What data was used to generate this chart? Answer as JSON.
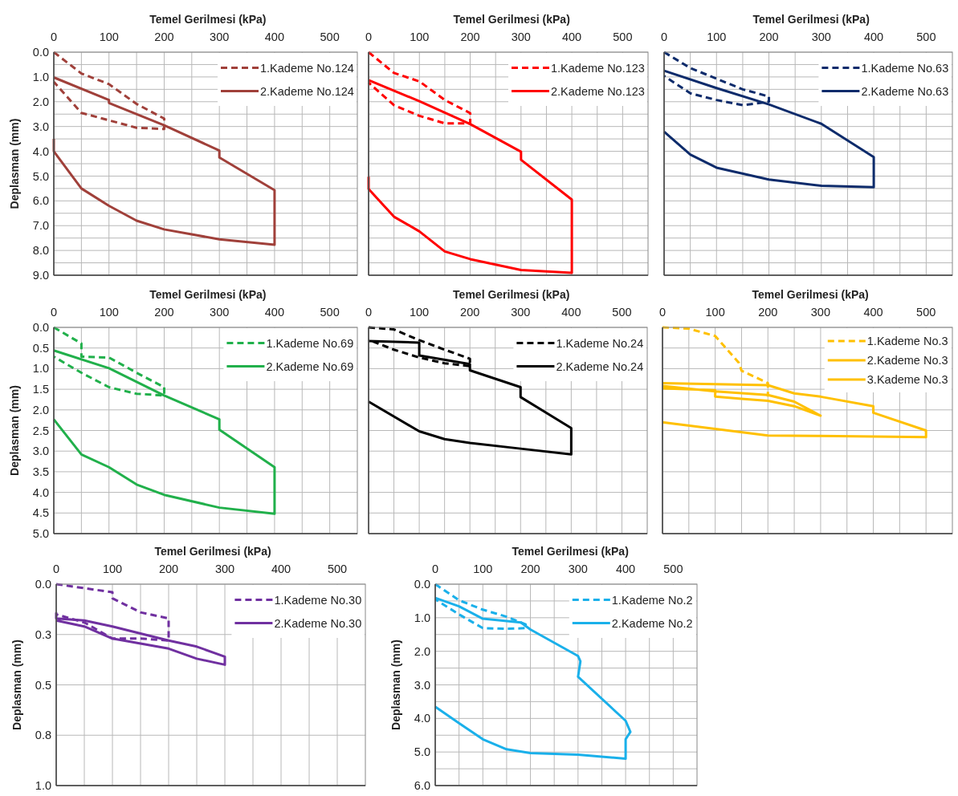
{
  "chart_data": [
    {
      "type": "line",
      "xlabel": "Temel Gerilmesi (kPa)",
      "ylabel": "Deplasman (mm)",
      "xlim": [
        0,
        550
      ],
      "ylim": [
        9,
        0
      ],
      "grid": true,
      "legend": "top right",
      "xticks": [
        0,
        {
          "value": 50,
          "label": null
        },
        100,
        {
          "value": 150,
          "label": null
        },
        200,
        {
          "value": 250,
          "label": null
        },
        300,
        {
          "value": 350,
          "label": null
        },
        400,
        {
          "value": 450,
          "label": null
        },
        500
      ],
      "yticks": [
        {
          "value": 0,
          "label": "0.0"
        },
        {
          "value": 0.5,
          "label": null
        },
        {
          "value": 1,
          "label": "1.0"
        },
        {
          "value": 1.5,
          "label": null
        },
        {
          "value": 2,
          "label": "2.0"
        },
        {
          "value": 2.5,
          "label": null
        },
        {
          "value": 3,
          "label": "3.0"
        },
        {
          "value": 3.5,
          "label": null
        },
        {
          "value": 4,
          "label": "4.0"
        },
        {
          "value": 4.5,
          "label": null
        },
        {
          "value": 5,
          "label": "5.0"
        },
        {
          "value": 5.5,
          "label": null
        },
        {
          "value": 6,
          "label": "6.0"
        },
        {
          "value": 6.5,
          "label": null
        },
        {
          "value": 7,
          "label": "7.0"
        },
        {
          "value": 7.5,
          "label": null
        },
        {
          "value": 8,
          "label": "8.0"
        },
        {
          "value": 8.5,
          "label": null
        },
        {
          "value": 9,
          "label": "9.0"
        }
      ],
      "series": [
        {
          "name": "1.Kademe No.124",
          "color": "#a0403a",
          "line_style": "dashed",
          "x": [
            0,
            50,
            100,
            150,
            200,
            200,
            150,
            100,
            50,
            0
          ],
          "values": [
            0,
            0.86,
            1.29,
            2.09,
            2.68,
            3.1,
            3.05,
            2.75,
            2.45,
            1.2
          ]
        },
        {
          "name": "2.Kademe No.124",
          "color": "#a0403a",
          "line_style": "solid",
          "x": [
            0,
            100,
            100,
            200,
            300,
            300,
            400,
            400,
            300,
            200,
            150,
            100,
            50,
            0,
            0
          ],
          "values": [
            1.02,
            1.93,
            2.05,
            2.95,
            3.97,
            4.25,
            5.57,
            7.77,
            7.55,
            7.15,
            6.8,
            6.2,
            5.5,
            4.0,
            3.5
          ]
        }
      ]
    },
    {
      "type": "line",
      "xlabel": "Temel Gerilmesi (kPa)",
      "xlim": [
        0,
        550
      ],
      "ylim": [
        9,
        0
      ],
      "grid": true,
      "legend": "top right",
      "tick_labels": "x",
      "xticks": [
        0,
        {
          "value": 50,
          "label": null
        },
        100,
        {
          "value": 150,
          "label": null
        },
        200,
        {
          "value": 250,
          "label": null
        },
        300,
        {
          "value": 350,
          "label": null
        },
        400,
        {
          "value": 450,
          "label": null
        },
        500
      ],
      "yticks": [
        0,
        0.5,
        1,
        1.5,
        2,
        2.5,
        3,
        3.5,
        4,
        4.5,
        5,
        5.5,
        6,
        6.5,
        7,
        7.5,
        8,
        8.5,
        9
      ],
      "series": [
        {
          "name": "1.Kademe No.123",
          "color": "#ff0000",
          "line_style": "dashed",
          "x": [
            0,
            50,
            100,
            150,
            200,
            200,
            150,
            100,
            50,
            0
          ],
          "values": [
            0,
            0.84,
            1.18,
            1.93,
            2.46,
            2.87,
            2.87,
            2.57,
            2.14,
            1.23
          ]
        },
        {
          "name": "2.Kademe No.123",
          "color": "#ff0000",
          "line_style": "solid",
          "x": [
            0,
            100,
            200,
            300,
            300,
            400,
            400,
            300,
            200,
            150,
            100,
            50,
            0,
            0
          ],
          "values": [
            1.13,
            1.98,
            2.9,
            4.02,
            4.34,
            5.95,
            8.9,
            8.79,
            8.35,
            8.04,
            7.23,
            6.64,
            5.52,
            5.03
          ]
        }
      ]
    },
    {
      "type": "line",
      "xlabel": "Temel Gerilmesi (kPa)",
      "xlim": [
        0,
        550
      ],
      "ylim": [
        9,
        0
      ],
      "grid": true,
      "legend": "top right",
      "tick_labels": "x",
      "xticks": [
        0,
        {
          "value": 50,
          "label": null
        },
        100,
        {
          "value": 150,
          "label": null
        },
        200,
        {
          "value": 250,
          "label": null
        },
        300,
        {
          "value": 350,
          "label": null
        },
        400,
        {
          "value": 450,
          "label": null
        },
        500
      ],
      "yticks": [
        0,
        0.5,
        1,
        1.5,
        2,
        2.5,
        3,
        3.5,
        4,
        4.5,
        5,
        5.5,
        6,
        6.5,
        7,
        7.5,
        8,
        8.5,
        9
      ],
      "series": [
        {
          "name": "1.Kademe No.63",
          "color": "#0d2b6b",
          "line_style": "dashed",
          "x": [
            0,
            50,
            100,
            150,
            200,
            200,
            150,
            100,
            50,
            0
          ],
          "values": [
            0,
            0.64,
            1.07,
            1.5,
            1.79,
            2.0,
            2.14,
            1.93,
            1.66,
            0.96
          ]
        },
        {
          "name": "2.Kademe No.63",
          "color": "#0d2b6b",
          "line_style": "solid",
          "x": [
            0,
            100,
            200,
            300,
            400,
            400,
            300,
            200,
            100,
            50,
            0
          ],
          "values": [
            0.75,
            1.45,
            2.11,
            2.89,
            4.23,
            5.45,
            5.39,
            5.14,
            4.66,
            4.13,
            3.21
          ]
        }
      ]
    },
    {
      "type": "line",
      "xlabel": "Temel Gerilmesi (kPa)",
      "ylabel": "Deplasman (mm)",
      "xlim": [
        0,
        550
      ],
      "ylim": [
        5,
        0
      ],
      "grid": true,
      "legend": "top right",
      "xticks": [
        0,
        {
          "value": 50,
          "label": null
        },
        100,
        {
          "value": 150,
          "label": null
        },
        200,
        {
          "value": 250,
          "label": null
        },
        300,
        {
          "value": 350,
          "label": null
        },
        400,
        {
          "value": 450,
          "label": null
        },
        500
      ],
      "yticks": [
        {
          "value": 0,
          "label": "0.0"
        },
        0.5,
        {
          "value": 1,
          "label": "1.0"
        },
        1.5,
        {
          "value": 2,
          "label": "2.0"
        },
        2.5,
        {
          "value": 3,
          "label": "3.0"
        },
        3.5,
        {
          "value": 4,
          "label": "4.0"
        },
        4.5,
        {
          "value": 5,
          "label": "5.0"
        }
      ],
      "series": [
        {
          "name": "1.Kademe No.69",
          "color": "#21b04b",
          "line_style": "dashed",
          "x": [
            0,
            50,
            50,
            100,
            150,
            200,
            200,
            150,
            100,
            50,
            0
          ],
          "values": [
            0,
            0.39,
            0.71,
            0.73,
            1.1,
            1.45,
            1.65,
            1.61,
            1.45,
            1.1,
            0.71
          ]
        },
        {
          "name": "2.Kademe No.69",
          "color": "#21b04b",
          "line_style": "solid",
          "x": [
            0,
            100,
            200,
            300,
            300,
            400,
            400,
            300,
            200,
            150,
            100,
            50,
            0
          ],
          "values": [
            0.56,
            0.99,
            1.65,
            2.23,
            2.48,
            3.39,
            4.52,
            4.37,
            4.06,
            3.81,
            3.39,
            3.08,
            2.23
          ]
        }
      ]
    },
    {
      "type": "line",
      "xlabel": "Temel Gerilmesi (kPa)",
      "xlim": [
        0,
        550
      ],
      "ylim": [
        5,
        0
      ],
      "grid": true,
      "legend": "top right",
      "tick_labels": "x",
      "xticks": [
        0,
        {
          "value": 50,
          "label": null
        },
        100,
        {
          "value": 150,
          "label": null
        },
        200,
        {
          "value": 250,
          "label": null
        },
        300,
        {
          "value": 350,
          "label": null
        },
        400,
        {
          "value": 450,
          "label": null
        },
        500
      ],
      "yticks": [
        0,
        0.5,
        1,
        1.5,
        2,
        2.5,
        3,
        3.5,
        4,
        4.5,
        5
      ],
      "series": [
        {
          "name": "1.Kademe No.24",
          "color": "#000000",
          "line_style": "dashed",
          "x": [
            0,
            50,
            100,
            150,
            200,
            200,
            150,
            100,
            50,
            0
          ],
          "values": [
            0,
            0.05,
            0.31,
            0.54,
            0.76,
            0.94,
            0.87,
            0.73,
            0.54,
            0.3
          ]
        },
        {
          "name": "2.Kademe No.24",
          "color": "#000000",
          "line_style": "solid",
          "x": [
            0,
            100,
            100,
            200,
            200,
            300,
            300,
            400,
            400,
            300,
            200,
            150,
            100,
            0
          ],
          "values": [
            0.33,
            0.37,
            0.68,
            0.89,
            1.04,
            1.45,
            1.69,
            2.44,
            3.08,
            2.94,
            2.8,
            2.71,
            2.52,
            1.8
          ]
        }
      ]
    },
    {
      "type": "line",
      "xlabel": "Temel Gerilmesi (kPa)",
      "xlim": [
        0,
        550
      ],
      "ylim": [
        5,
        0
      ],
      "grid": true,
      "legend": "top right",
      "tick_labels": "x",
      "xticks": [
        0,
        {
          "value": 50,
          "label": null
        },
        100,
        {
          "value": 150,
          "label": null
        },
        200,
        {
          "value": 250,
          "label": null
        },
        300,
        {
          "value": 350,
          "label": null
        },
        400,
        {
          "value": 450,
          "label": null
        },
        500
      ],
      "yticks": [
        0,
        0.5,
        1,
        1.5,
        2,
        2.5,
        3,
        3.5,
        4,
        4.5,
        5
      ],
      "series": [
        {
          "name": "1.Kademe No.3",
          "color": "#ffc000",
          "line_style": "dashed",
          "x": [
            0,
            50,
            100,
            145,
            150,
            200,
            200
          ],
          "values": [
            0,
            0.03,
            0.21,
            0.86,
            1.05,
            1.35,
            1.68
          ]
        },
        {
          "name": "2.Kademe No.3",
          "color": "#ffc000",
          "line_style": "solid",
          "x": [
            0,
            100,
            100,
            150,
            200,
            250,
            300,
            250,
            200,
            100,
            0
          ],
          "values": [
            1.48,
            1.52,
            1.68,
            1.73,
            1.78,
            1.91,
            2.14,
            1.8,
            1.64,
            1.55,
            1.42
          ]
        },
        {
          "name": "3.Kademe No.3",
          "color": "#ffc000",
          "line_style": "solid",
          "x": [
            0,
            200,
            250,
            300,
            400,
            400,
            500,
            500,
            300,
            200,
            0
          ],
          "values": [
            1.35,
            1.4,
            1.6,
            1.68,
            1.91,
            2.07,
            2.5,
            2.66,
            2.63,
            2.62,
            2.3
          ]
        }
      ]
    },
    {
      "type": "line",
      "xlabel": "Temel Gerilmesi (kPa)",
      "ylabel": "Deplasman (mm)",
      "xlim": [
        0,
        550
      ],
      "ylim": [
        1,
        0
      ],
      "grid": true,
      "legend": "top right",
      "xticks": [
        0,
        {
          "value": 50,
          "label": null
        },
        100,
        {
          "value": 150,
          "label": null
        },
        200,
        {
          "value": 250,
          "label": null
        },
        300,
        {
          "value": 350,
          "label": null
        },
        400,
        {
          "value": 450,
          "label": null
        },
        500
      ],
      "yticks": [
        {
          "value": 0,
          "label": "0.0"
        },
        {
          "value": 0.25,
          "label": "0.3"
        },
        0.5,
        {
          "value": 0.75,
          "label": "0.8"
        },
        {
          "value": 1,
          "label": "1.0"
        }
      ],
      "series": [
        {
          "name": "1.Kademe No.30",
          "color": "#7030a0",
          "line_style": "dashed",
          "x": [
            0,
            50,
            100,
            100,
            150,
            200,
            200,
            150,
            100,
            50,
            0
          ],
          "values": [
            0,
            0.02,
            0.04,
            0.07,
            0.14,
            0.17,
            0.28,
            0.27,
            0.27,
            0.19,
            0.15
          ]
        },
        {
          "name": "2.Kademe No.30",
          "color": "#7030a0",
          "line_style": "solid",
          "x": [
            0,
            0,
            50,
            100,
            200,
            250,
            300,
            300,
            250,
            200,
            100,
            50,
            0
          ],
          "values": [
            0.14,
            0.17,
            0.18,
            0.21,
            0.28,
            0.31,
            0.36,
            0.4,
            0.37,
            0.32,
            0.27,
            0.21,
            0.18
          ]
        }
      ]
    },
    {
      "type": "line",
      "xlabel": "Temel Gerilmesi (kPa)",
      "ylabel": "Deplasman (mm)",
      "xlim": [
        0,
        550
      ],
      "ylim": [
        6,
        0
      ],
      "grid": true,
      "legend": "top right",
      "xticks": [
        0,
        {
          "value": 50,
          "label": null
        },
        100,
        {
          "value": 150,
          "label": null
        },
        200,
        {
          "value": 250,
          "label": null
        },
        300,
        {
          "value": 350,
          "label": null
        },
        400,
        {
          "value": 450,
          "label": null
        },
        500
      ],
      "yticks": [
        {
          "value": 0,
          "label": "0.0"
        },
        {
          "value": 0.5,
          "label": null
        },
        {
          "value": 1,
          "label": "1.0"
        },
        {
          "value": 1.5,
          "label": null
        },
        {
          "value": 2,
          "label": "2.0"
        },
        {
          "value": 2.5,
          "label": null
        },
        {
          "value": 3,
          "label": "3.0"
        },
        {
          "value": 3.5,
          "label": null
        },
        {
          "value": 4,
          "label": "4.0"
        },
        {
          "value": 4.5,
          "label": null
        },
        {
          "value": 5,
          "label": "5.0"
        },
        {
          "value": 5.5,
          "label": null
        },
        {
          "value": 6,
          "label": "6.0"
        }
      ],
      "series": [
        {
          "name": "1.Kademe No.2",
          "color": "#1ab0ea",
          "line_style": "dashed",
          "x": [
            0,
            50,
            100,
            150,
            190,
            190,
            150,
            100,
            50,
            0
          ],
          "values": [
            0,
            0.48,
            0.76,
            0.97,
            1.2,
            1.31,
            1.33,
            1.31,
            0.9,
            0.45
          ]
        },
        {
          "name": "2.Kademe No.2",
          "color": "#1ab0ea",
          "line_style": "solid",
          "x": [
            0,
            50,
            100,
            180,
            200,
            300,
            305,
            300,
            400,
            410,
            400,
            400,
            300,
            200,
            150,
            100,
            50,
            0
          ],
          "values": [
            0.41,
            0.66,
            1.03,
            1.14,
            1.35,
            2.14,
            2.3,
            2.76,
            4.07,
            4.4,
            4.62,
            5.2,
            5.08,
            5.03,
            4.92,
            4.62,
            4.14,
            3.65
          ]
        }
      ]
    }
  ]
}
